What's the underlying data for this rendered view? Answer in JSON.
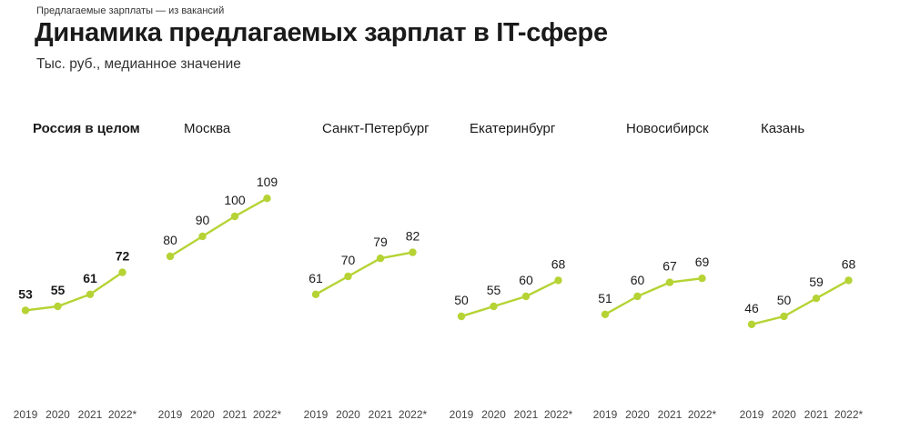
{
  "header": {
    "kicker": "Предлагаемые зарплаты — из вакансий",
    "title": "Динамика предлагаемых зарплат в IT-сфере",
    "subtitle": "Тыс. руб., медианное значение"
  },
  "colors": {
    "line": "#b5d334",
    "text": "#1a1a1a"
  },
  "chart_data": {
    "type": "line",
    "title": "Динамика предлагаемых зарплат в IT-сфере",
    "subtitle": "Тыс. руб., медианное значение",
    "x": [
      "2019",
      "2020",
      "2021",
      "2022*"
    ],
    "panels": [
      {
        "name": "Россия в целом",
        "values": [
          53,
          55,
          61,
          72
        ],
        "emphasis": true
      },
      {
        "name": "Москва",
        "values": [
          80,
          90,
          100,
          109
        ]
      },
      {
        "name": "Санкт-Петербург",
        "values": [
          61,
          70,
          79,
          82
        ]
      },
      {
        "name": "Екатеринбург",
        "values": [
          50,
          55,
          60,
          68
        ]
      },
      {
        "name": "Новосибирск",
        "values": [
          51,
          60,
          67,
          69
        ]
      },
      {
        "name": "Казань",
        "values": [
          46,
          50,
          59,
          68
        ]
      }
    ],
    "ylim": [
      40,
      115
    ],
    "grid": false,
    "legend": "none"
  }
}
